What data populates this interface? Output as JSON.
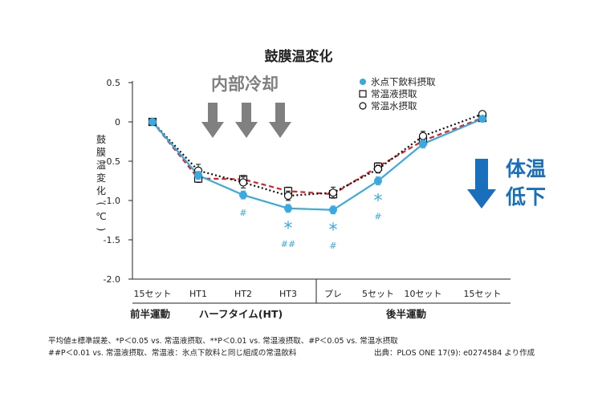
{
  "chart_data": {
    "type": "line",
    "title": "鼓膜温変化",
    "ylabel": "鼓膜温変化(℃)",
    "ylim": [
      -2.0,
      0.5
    ],
    "yticks": [
      "0.5",
      "0",
      "-0.5",
      "-1.0",
      "-1.5",
      "-2.0"
    ],
    "categories": [
      "15セット",
      "HT1",
      "HT2",
      "HT3",
      "プレ",
      "5セット",
      "10セット",
      "15セット"
    ],
    "group_labels": [
      "前半運動",
      "ハーフタイム(HT)",
      "後半運動"
    ],
    "series": [
      {
        "name": "氷点下飲料摂取",
        "color": "#39a9e0",
        "values": [
          0.0,
          -0.68,
          -0.93,
          -1.1,
          -1.12,
          -0.75,
          -0.28,
          0.04
        ],
        "errors": [
          0.02,
          0.05,
          0.05,
          0.05,
          0.05,
          0.05,
          0.05,
          0.03
        ]
      },
      {
        "name": "常温液摂取",
        "color": "#e02020",
        "values": [
          0.0,
          -0.72,
          -0.73,
          -0.88,
          -0.92,
          -0.57,
          -0.24,
          0.05
        ],
        "errors": [
          0.02,
          0.05,
          0.05,
          0.05,
          0.05,
          0.05,
          0.05,
          0.03
        ]
      },
      {
        "name": "常温水摂取",
        "color": "#111111",
        "values": [
          0.0,
          -0.62,
          -0.77,
          -0.94,
          -0.9,
          -0.6,
          -0.18,
          0.1
        ],
        "errors": [
          0.02,
          0.08,
          0.07,
          0.06,
          0.07,
          0.05,
          0.06,
          0.03
        ]
      }
    ],
    "significance": [
      {
        "index": 2,
        "marks": [
          "#"
        ]
      },
      {
        "index": 3,
        "marks": [
          "*",
          "##"
        ]
      },
      {
        "index": 4,
        "marks": [
          "*",
          "#"
        ]
      },
      {
        "index": 5,
        "marks": [
          "*",
          "#"
        ]
      }
    ],
    "annotations": {
      "internal_cooling": "内部冷却",
      "body_temp_drop_1": "体温",
      "body_temp_drop_2": "低下"
    },
    "legend_position": "top-right",
    "grid": false
  },
  "footnotes": {
    "line1": "平均値±標準誤差、*P＜0.05 vs. 常温液摂取、**P＜0.01 vs. 常温液摂取、#P＜0.05 vs. 常温水摂取",
    "line2": "##P＜0.01 vs. 常温液摂取、常温液：氷点下飲料と同じ組成の常温飲料",
    "source": "出典：PLOS ONE 17(9): e0274584 より作成"
  }
}
